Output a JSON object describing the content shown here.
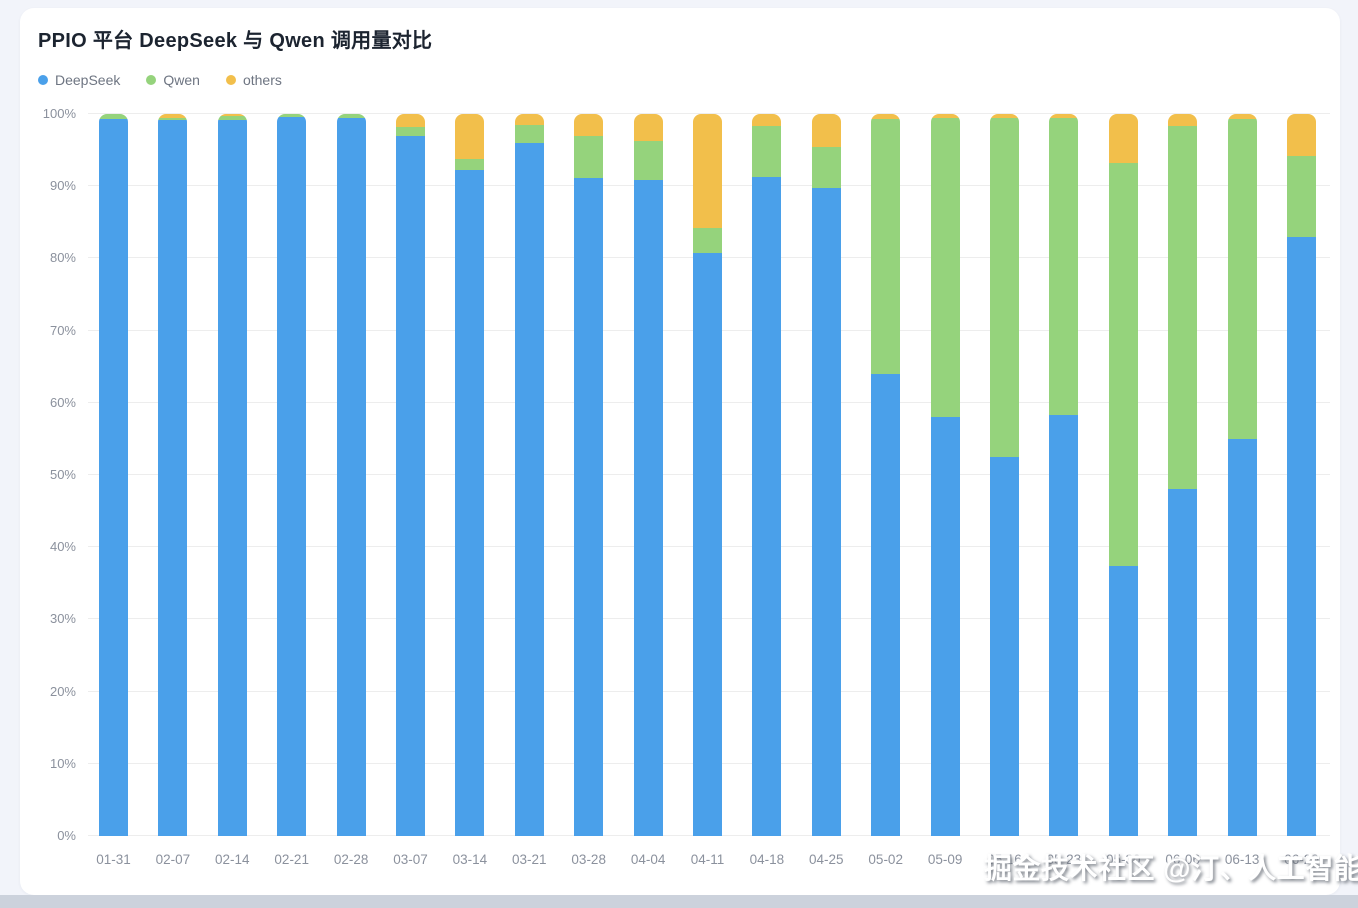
{
  "page": {
    "watermark": "掘金技术社区 @汀、人工智能"
  },
  "chart_data": {
    "type": "bar",
    "stacked": true,
    "title": "PPIO 平台 DeepSeek 与 Qwen 调用量对比",
    "unit": "percent",
    "grid": true,
    "legend_position": "top-left",
    "ylim": [
      0,
      100
    ],
    "y_ticks": [
      "0%",
      "10%",
      "20%",
      "30%",
      "40%",
      "50%",
      "60%",
      "70%",
      "80%",
      "90%",
      "100%"
    ],
    "categories": [
      "01-31",
      "02-07",
      "02-14",
      "02-21",
      "02-28",
      "03-07",
      "03-14",
      "03-21",
      "03-28",
      "04-04",
      "04-11",
      "04-18",
      "04-25",
      "05-02",
      "05-09",
      "05-16",
      "05-23",
      "05-30",
      "06-06",
      "06-13",
      "06-20"
    ],
    "series": [
      {
        "name": "DeepSeek",
        "color": "#4aa0ea",
        "values": [
          99.3,
          99.2,
          99.2,
          99.6,
          99.4,
          97.0,
          92.2,
          96.0,
          91.1,
          90.8,
          80.7,
          91.3,
          89.8,
          64.0,
          58.0,
          52.5,
          58.3,
          37.4,
          48.0,
          55.0,
          82.9
        ]
      },
      {
        "name": "Qwen",
        "color": "#95d37c",
        "values": [
          0.7,
          0.3,
          0.5,
          0.4,
          0.6,
          1.2,
          1.6,
          2.5,
          5.8,
          5.4,
          3.5,
          7.1,
          5.6,
          35.3,
          41.5,
          47.0,
          41.2,
          55.8,
          50.3,
          44.3,
          11.3
        ]
      },
      {
        "name": "others",
        "color": "#f2bf4b",
        "values": [
          0.0,
          0.5,
          0.3,
          0.0,
          0.0,
          1.8,
          6.2,
          1.5,
          3.1,
          3.8,
          15.8,
          1.6,
          4.6,
          0.7,
          0.5,
          0.5,
          0.5,
          6.8,
          1.7,
          0.7,
          5.8
        ]
      }
    ]
  }
}
